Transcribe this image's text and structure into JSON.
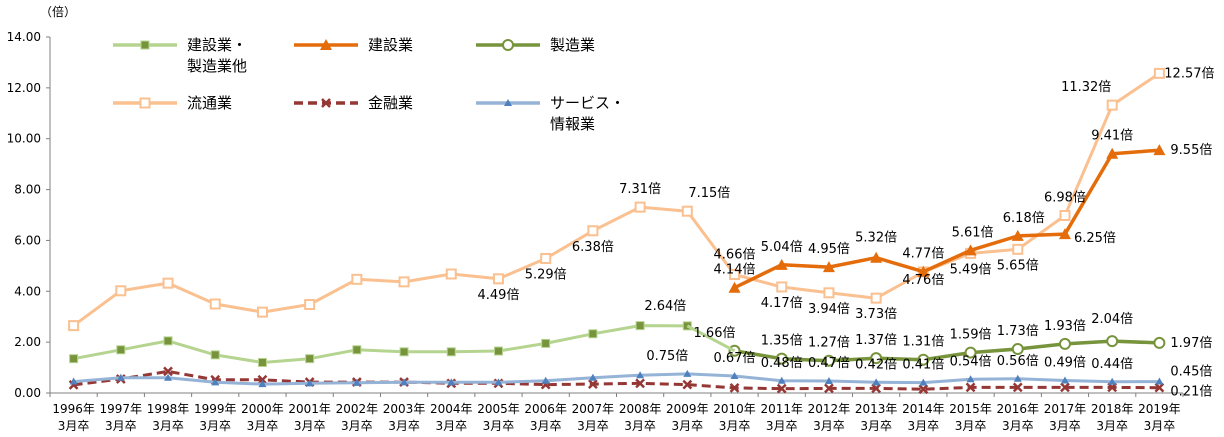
{
  "chart_data": {
    "type": "line",
    "title": "",
    "ylabel": "（倍）",
    "xlabel": "",
    "ylim": [
      0,
      14
    ],
    "yticks": [
      "0.00",
      "2.00",
      "4.00",
      "6.00",
      "8.00",
      "10.00",
      "12.00",
      "14.00"
    ],
    "grid": false,
    "legend_placement": "top-left",
    "categories": [
      [
        "1996年",
        "3月卒"
      ],
      [
        "1997年",
        "3月卒"
      ],
      [
        "1998年",
        "3月卒"
      ],
      [
        "1999年",
        "3月卒"
      ],
      [
        "2000年",
        "3月卒"
      ],
      [
        "2001年",
        "3月卒"
      ],
      [
        "2002年",
        "3月卒"
      ],
      [
        "2003年",
        "3月卒"
      ],
      [
        "2004年",
        "3月卒"
      ],
      [
        "2005年",
        "3月卒"
      ],
      [
        "2006年",
        "3月卒"
      ],
      [
        "2007年",
        "3月卒"
      ],
      [
        "2008年",
        "3月卒"
      ],
      [
        "2009年",
        "3月卒"
      ],
      [
        "2010年",
        "3月卒"
      ],
      [
        "2011年",
        "3月卒"
      ],
      [
        "2012年",
        "3月卒"
      ],
      [
        "2013年",
        "3月卒"
      ],
      [
        "2014年",
        "3月卒"
      ],
      [
        "2015年",
        "3月卒"
      ],
      [
        "2016年",
        "3月卒"
      ],
      [
        "2017年",
        "3月卒"
      ],
      [
        "2018年",
        "3月卒"
      ],
      [
        "2019年",
        "3月卒"
      ]
    ],
    "series": [
      {
        "name": "建設業・製造業他",
        "legend_lines": [
          "建設業・",
          "製造業他"
        ],
        "color": "#b5d48f",
        "marker": "square",
        "values": [
          1.35,
          1.7,
          2.05,
          1.5,
          1.2,
          1.35,
          1.7,
          1.62,
          1.62,
          1.65,
          1.95,
          2.33,
          2.65,
          2.64,
          null,
          null,
          null,
          null,
          null,
          null,
          null,
          null,
          null,
          null
        ],
        "labels": [
          null,
          null,
          null,
          null,
          null,
          null,
          null,
          null,
          null,
          null,
          null,
          null,
          null,
          "2.64倍",
          null,
          null,
          null,
          null,
          null,
          null,
          null,
          null,
          null,
          null
        ]
      },
      {
        "name": "建設業",
        "legend_lines": [
          "建設業"
        ],
        "color": "#e46c0a",
        "marker": "triangle",
        "values": [
          null,
          null,
          null,
          null,
          null,
          null,
          null,
          null,
          null,
          null,
          null,
          null,
          null,
          null,
          4.14,
          5.04,
          4.95,
          5.32,
          4.77,
          5.61,
          6.18,
          6.25,
          9.41,
          9.55
        ],
        "labels": [
          null,
          null,
          null,
          null,
          null,
          null,
          null,
          null,
          null,
          null,
          null,
          null,
          null,
          null,
          "4.14倍",
          "5.04倍",
          "4.95倍",
          "5.32倍",
          "4.77倍",
          "5.61倍",
          "6.18倍",
          "6.25倍",
          "9.41倍",
          "9.55倍"
        ]
      },
      {
        "name": "製造業",
        "legend_lines": [
          "製造業"
        ],
        "color": "#77933c",
        "marker": "circle",
        "values": [
          null,
          null,
          null,
          null,
          null,
          null,
          null,
          null,
          null,
          null,
          null,
          null,
          null,
          null,
          1.66,
          1.35,
          1.27,
          1.37,
          1.31,
          1.59,
          1.73,
          1.93,
          2.04,
          1.97
        ],
        "labels": [
          null,
          null,
          null,
          null,
          null,
          null,
          null,
          null,
          null,
          null,
          null,
          null,
          null,
          null,
          "1.66倍",
          "1.35倍",
          "1.27倍",
          "1.37倍",
          "1.31倍",
          "1.59倍",
          "1.73倍",
          "1.93倍",
          "2.04倍",
          "1.97倍"
        ]
      },
      {
        "name": "流通業",
        "legend_lines": [
          "流通業"
        ],
        "color": "#fac090",
        "marker": "square-open",
        "values": [
          2.65,
          4.02,
          4.32,
          3.5,
          3.18,
          3.48,
          4.47,
          4.37,
          4.68,
          4.49,
          5.29,
          6.38,
          7.31,
          7.15,
          4.66,
          4.17,
          3.94,
          3.73,
          4.76,
          5.49,
          5.65,
          6.98,
          11.32,
          12.57
        ],
        "labels": [
          null,
          null,
          null,
          null,
          null,
          null,
          null,
          null,
          null,
          "4.49倍",
          "5.29倍",
          "6.38倍",
          "7.31倍",
          "7.15倍",
          "4.66倍",
          "4.17倍",
          "3.94倍",
          "3.73倍",
          "4.76倍",
          "5.49倍",
          "5.65倍",
          "6.98倍",
          "11.32倍",
          "12.57倍"
        ]
      },
      {
        "name": "金融業",
        "legend_lines": [
          "金融業"
        ],
        "color": "#953735",
        "marker": "x",
        "dash": true,
        "values": [
          0.32,
          0.55,
          0.85,
          0.52,
          0.52,
          0.43,
          0.43,
          0.43,
          0.38,
          0.38,
          0.33,
          0.35,
          0.38,
          0.33,
          0.2,
          0.17,
          0.18,
          0.18,
          0.15,
          0.22,
          0.22,
          0.22,
          0.22,
          0.21
        ],
        "labels": [
          null,
          null,
          null,
          null,
          null,
          null,
          null,
          null,
          null,
          null,
          null,
          null,
          null,
          null,
          null,
          null,
          null,
          null,
          null,
          null,
          null,
          null,
          null,
          "0.21倍"
        ]
      },
      {
        "name": "サービス・情報業",
        "legend_lines": [
          "サービス・",
          "情報業"
        ],
        "color": "#95b3d7",
        "marker": "triangle-small",
        "values": [
          0.45,
          0.6,
          0.6,
          0.42,
          0.35,
          0.38,
          0.4,
          0.42,
          0.42,
          0.42,
          0.48,
          0.6,
          0.7,
          0.75,
          0.67,
          0.48,
          0.47,
          0.42,
          0.41,
          0.54,
          0.56,
          0.49,
          0.44,
          0.45
        ],
        "labels": [
          null,
          null,
          null,
          null,
          null,
          null,
          null,
          null,
          null,
          null,
          null,
          null,
          null,
          "0.75倍",
          "0.67倍",
          "0.48倍",
          "0.47倍",
          "0.42倍",
          "0.41倍",
          "0.54倍",
          "0.56倍",
          "0.49倍",
          "0.44倍",
          "0.45倍"
        ]
      }
    ]
  }
}
